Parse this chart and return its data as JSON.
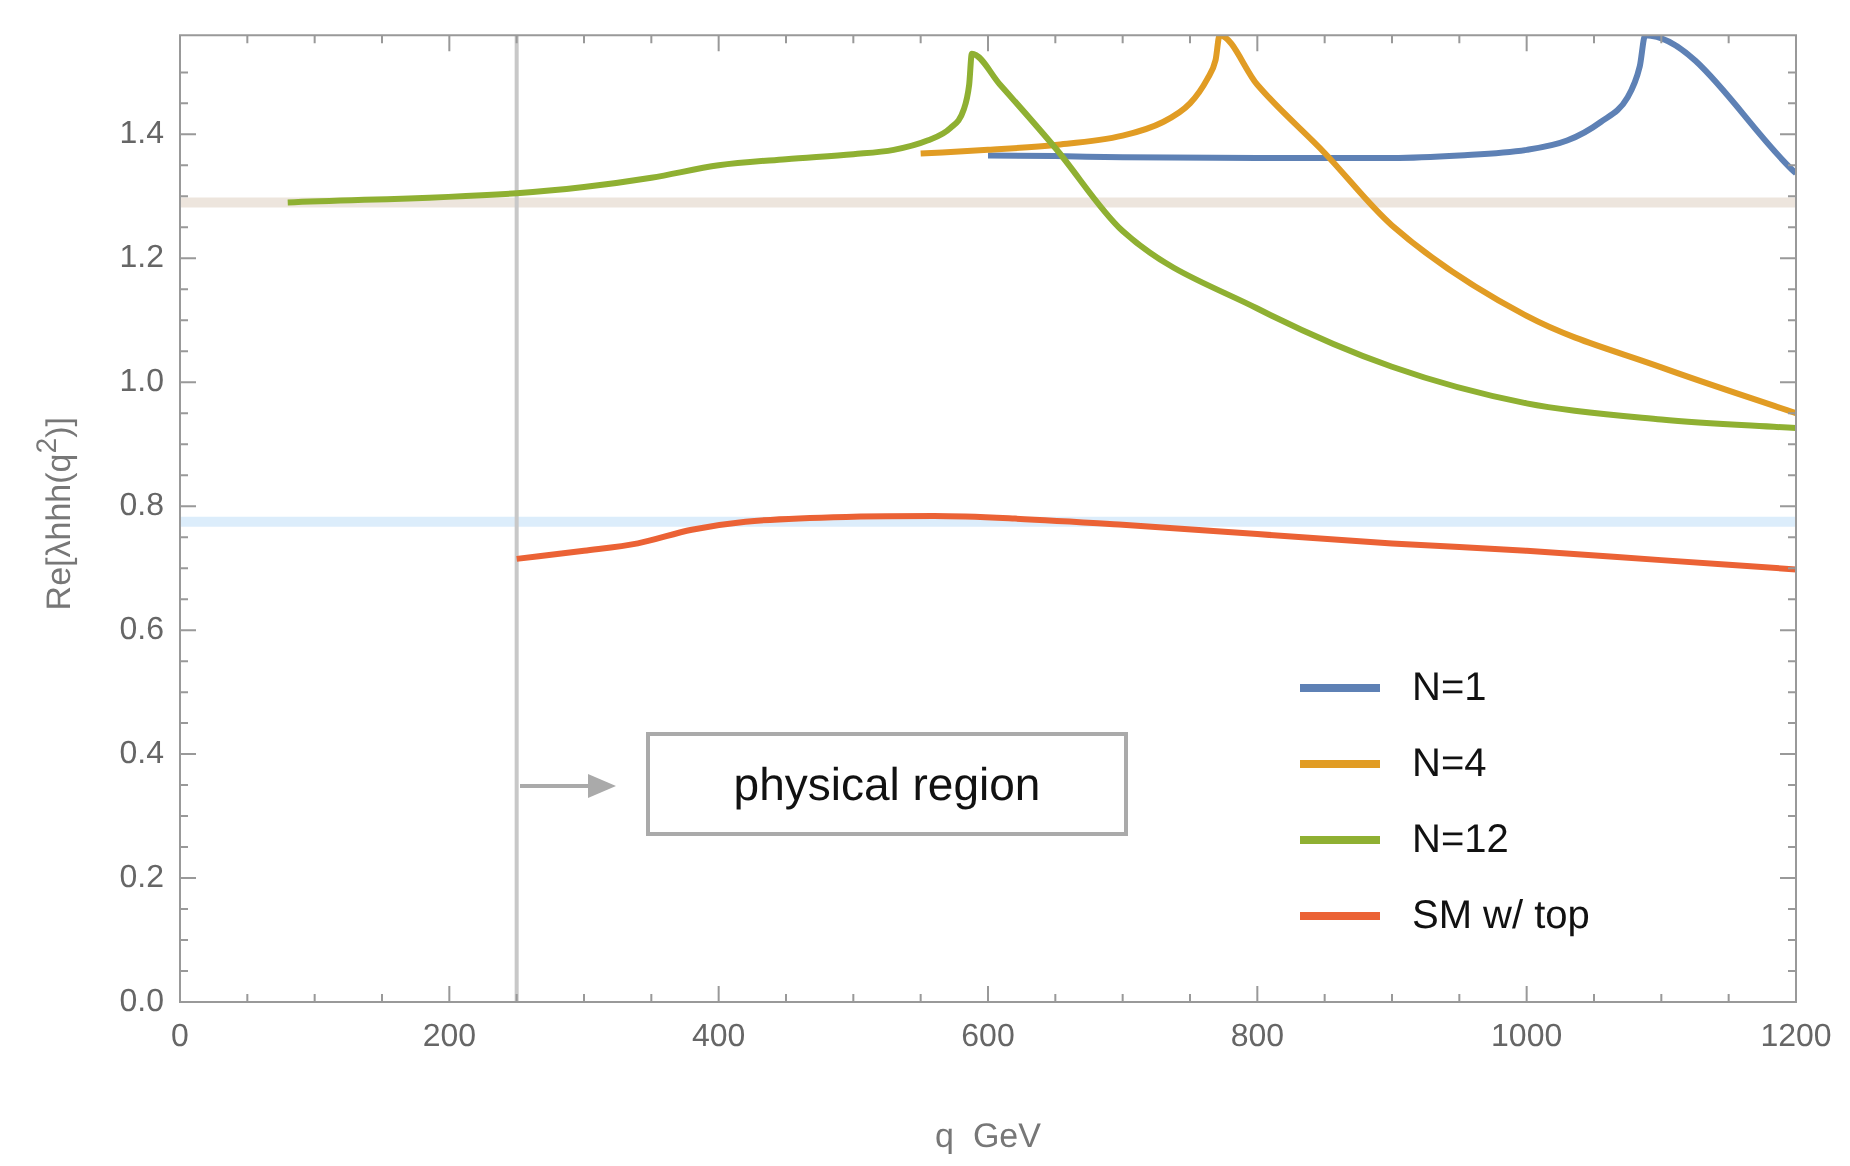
{
  "chart_data": {
    "type": "line",
    "xlabel": "q  GeV",
    "ylabel": "Re[λhhh(q$^{2}$)]",
    "xlim": [
      0,
      1200
    ],
    "ylim": [
      0,
      1.56
    ],
    "xticks": [
      0,
      {
        "value": 50,
        "label": null
      },
      {
        "value": 100,
        "label": null
      },
      {
        "value": 150,
        "label": null
      },
      200,
      {
        "value": 250,
        "label": null
      },
      {
        "value": 300,
        "label": null
      },
      {
        "value": 350,
        "label": null
      },
      400,
      {
        "value": 450,
        "label": null
      },
      {
        "value": 500,
        "label": null
      },
      {
        "value": 550,
        "label": null
      },
      600,
      {
        "value": 650,
        "label": null
      },
      {
        "value": 700,
        "label": null
      },
      {
        "value": 750,
        "label": null
      },
      800,
      {
        "value": 850,
        "label": null
      },
      {
        "value": 900,
        "label": null
      },
      {
        "value": 950,
        "label": null
      },
      1000,
      {
        "value": 1050,
        "label": null
      },
      {
        "value": 1100,
        "label": null
      },
      {
        "value": 1150,
        "label": null
      },
      1200
    ],
    "yticks": [
      {
        "value": 0,
        "label": "0.0"
      },
      {
        "value": 0.05,
        "label": null
      },
      {
        "value": 0.1,
        "label": null
      },
      {
        "value": 0.15,
        "label": null
      },
      {
        "value": 0.2,
        "label": "0.2"
      },
      {
        "value": 0.25,
        "label": null
      },
      {
        "value": 0.3,
        "label": null
      },
      {
        "value": 0.35,
        "label": null
      },
      {
        "value": 0.4,
        "label": "0.4"
      },
      {
        "value": 0.45,
        "label": null
      },
      {
        "value": 0.5,
        "label": null
      },
      {
        "value": 0.55,
        "label": null
      },
      {
        "value": 0.6,
        "label": "0.6"
      },
      {
        "value": 0.65,
        "label": null
      },
      {
        "value": 0.7,
        "label": null
      },
      {
        "value": 0.75,
        "label": null
      },
      {
        "value": 0.8,
        "label": "0.8"
      },
      {
        "value": 0.85,
        "label": null
      },
      {
        "value": 0.9,
        "label": null
      },
      {
        "value": 0.95,
        "label": null
      },
      {
        "value": 1.0,
        "label": "1.0"
      },
      {
        "value": 1.05,
        "label": null
      },
      {
        "value": 1.1,
        "label": null
      },
      {
        "value": 1.15,
        "label": null
      },
      {
        "value": 1.2,
        "label": "1.2"
      },
      {
        "value": 1.25,
        "label": null
      },
      {
        "value": 1.3,
        "label": null
      },
      {
        "value": 1.35,
        "label": null
      },
      {
        "value": 1.4,
        "label": "1.4"
      },
      {
        "value": 1.45,
        "label": null
      },
      {
        "value": 1.5,
        "label": null
      }
    ],
    "grid": false,
    "legend": "bottom right",
    "marker": "none",
    "line_style": "solid",
    "series": [
      {
        "name": "N=1",
        "color": "#5e81b5",
        "x": [
          600,
          650,
          700,
          800,
          900,
          950,
          1000,
          1030,
          1055,
          1075,
          1084,
          1088,
          1200
        ],
        "values": [
          1.366,
          1.365,
          1.363,
          1.362,
          1.362,
          1.366,
          1.375,
          1.39,
          1.42,
          1.46,
          1.51,
          1.56,
          1.337
        ]
      },
      {
        "name": "N=4",
        "color": "#e19c24",
        "x": [
          550,
          600,
          650,
          700,
          730,
          750,
          763,
          769,
          772,
          800,
          850,
          900,
          1000,
          1100,
          1200
        ],
        "values": [
          1.369,
          1.375,
          1.383,
          1.398,
          1.42,
          1.45,
          1.49,
          1.52,
          1.56,
          1.48,
          1.37,
          1.253,
          1.107,
          1.024,
          0.95
        ]
      },
      {
        "name": "N=12",
        "color": "#8fb032",
        "x": [
          80,
          250,
          300,
          350,
          400,
          450,
          500,
          530,
          555,
          572,
          582,
          586,
          588,
          609,
          650,
          700,
          800,
          900,
          1000,
          1100,
          1200
        ],
        "values": [
          1.29,
          1.305,
          1.315,
          1.33,
          1.35,
          1.36,
          1.368,
          1.375,
          1.39,
          1.41,
          1.44,
          1.48,
          1.53,
          1.48,
          1.378,
          1.244,
          1.119,
          1.025,
          0.966,
          0.94,
          0.926
        ]
      },
      {
        "name": "SM w/ top",
        "color": "#eb6235",
        "x": [
          250,
          300,
          340,
          380,
          420,
          500,
          560,
          620,
          700,
          800,
          900,
          1000,
          1100,
          1200
        ],
        "values": [
          0.715,
          0.728,
          0.74,
          0.762,
          0.775,
          0.783,
          0.784,
          0.78,
          0.77,
          0.755,
          0.74,
          0.728,
          0.713,
          0.698
        ]
      }
    ],
    "ref_lines": [
      {
        "axis": "y",
        "value": 1.29,
        "color": "#ede5dd"
      },
      {
        "axis": "y",
        "value": 0.775,
        "color": "#dcedfb"
      },
      {
        "axis": "x",
        "value": 250,
        "color": "#c8c8c8"
      }
    ],
    "annotations": [
      "physical region"
    ]
  }
}
